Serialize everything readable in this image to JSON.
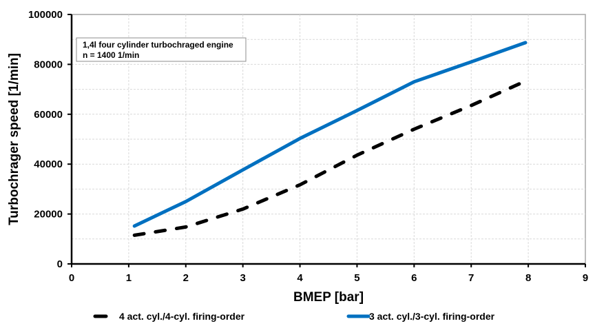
{
  "chart_data": {
    "type": "line",
    "title": "",
    "xlabel": "BMEP [bar]",
    "ylabel": "Turbochrager speed [1/min]",
    "xlim": [
      0,
      9
    ],
    "ylim": [
      0,
      100000
    ],
    "x_ticks": [
      "0",
      "1",
      "2",
      "3",
      "4",
      "5",
      "6",
      "7",
      "8",
      "9"
    ],
    "y_ticks": [
      "0",
      "20000",
      "40000",
      "60000",
      "80000",
      "100000"
    ],
    "grid": true,
    "legend_position": "bottom",
    "annotation": {
      "line1": "1,4l four cylinder turbochraged engine",
      "line2": "n = 1400 1/min"
    },
    "series": [
      {
        "name": "4 act. cyl./4-cyl. firing-order",
        "color": "#000000",
        "style": "dashed",
        "x": [
          1.1,
          2,
          3,
          4,
          5,
          6,
          7,
          7.95
        ],
        "values": [
          11500,
          14800,
          22000,
          31700,
          43600,
          54000,
          63500,
          73300
        ]
      },
      {
        "name": "3 act. cyl./3-cyl. firing-order",
        "color": "#0070C0",
        "style": "solid",
        "x": [
          1.1,
          2,
          3,
          4,
          5,
          6,
          7,
          7.95
        ],
        "values": [
          15200,
          25000,
          37700,
          50300,
          61500,
          73000,
          81000,
          88700
        ]
      }
    ]
  }
}
